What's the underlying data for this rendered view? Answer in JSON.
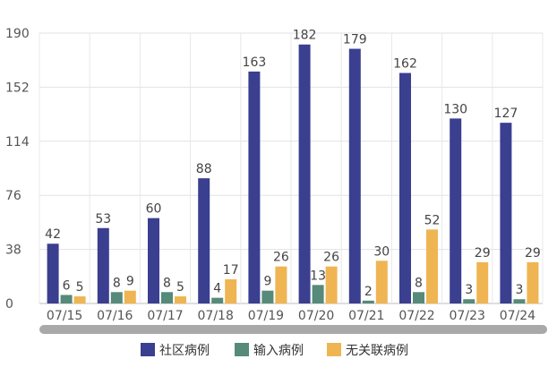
{
  "chart_data": {
    "type": "bar",
    "categories": [
      "07/15",
      "07/16",
      "07/17",
      "07/18",
      "07/19",
      "07/20",
      "07/21",
      "07/22",
      "07/23",
      "07/24"
    ],
    "series": [
      {
        "name": "社区病例",
        "color": "#3b3f8f",
        "values": [
          42,
          53,
          60,
          88,
          163,
          182,
          179,
          162,
          130,
          127
        ]
      },
      {
        "name": "输入病例",
        "color": "#568a7a",
        "values": [
          6,
          8,
          8,
          4,
          9,
          13,
          2,
          8,
          3,
          3
        ]
      },
      {
        "name": "无关联病例",
        "color": "#efb552",
        "values": [
          5,
          9,
          5,
          17,
          26,
          26,
          30,
          52,
          29,
          29
        ]
      }
    ],
    "yticks": [
      0,
      38,
      76,
      114,
      152,
      190
    ],
    "ylim": [
      0,
      190
    ],
    "grid": true,
    "legend_position": "bottom",
    "scrollbar": true
  }
}
